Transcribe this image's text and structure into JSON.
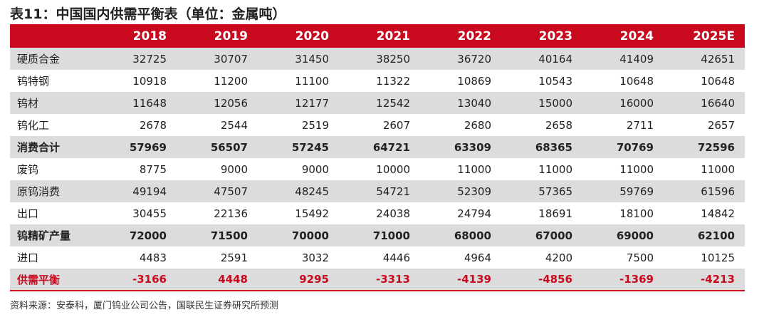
{
  "title": "表11：中国国内供需平衡表（单位：金属吨）",
  "columns": [
    "2018",
    "2019",
    "2020",
    "2021",
    "2022",
    "2023",
    "2024",
    "2025E"
  ],
  "rows": [
    {
      "label": "硬质合金",
      "values": [
        "32725",
        "30707",
        "31450",
        "38250",
        "36720",
        "40164",
        "41409",
        "42651"
      ]
    },
    {
      "label": "钨特钢",
      "values": [
        "10918",
        "11200",
        "11100",
        "11322",
        "10869",
        "10543",
        "10648",
        "10648"
      ]
    },
    {
      "label": "钨材",
      "values": [
        "11648",
        "12056",
        "12177",
        "12542",
        "13040",
        "15000",
        "16000",
        "16640"
      ]
    },
    {
      "label": "钨化工",
      "values": [
        "2678",
        "2544",
        "2519",
        "2607",
        "2680",
        "2658",
        "2711",
        "2657"
      ]
    },
    {
      "label": "消费合计",
      "values": [
        "57969",
        "56507",
        "57245",
        "64721",
        "63309",
        "68365",
        "70769",
        "72596"
      ]
    },
    {
      "label": "废钨",
      "values": [
        "8775",
        "9000",
        "9000",
        "10000",
        "11000",
        "11000",
        "11000",
        "11000"
      ]
    },
    {
      "label": "原钨消费",
      "values": [
        "49194",
        "47507",
        "48245",
        "54721",
        "52309",
        "57365",
        "59769",
        "61596"
      ]
    },
    {
      "label": "出口",
      "values": [
        "30455",
        "22136",
        "15492",
        "24038",
        "24794",
        "18691",
        "18100",
        "14842"
      ]
    },
    {
      "label": "钨精矿产量",
      "values": [
        "72000",
        "71500",
        "70000",
        "71000",
        "68000",
        "67000",
        "69000",
        "62100"
      ]
    },
    {
      "label": "进口",
      "values": [
        "4483",
        "2591",
        "3032",
        "4446",
        "4964",
        "4200",
        "7500",
        "10125"
      ]
    },
    {
      "label": "供需平衡",
      "values": [
        "-3166",
        "4448",
        "9295",
        "-3313",
        "-4139",
        "-4856",
        "-1369",
        "-4213"
      ]
    }
  ],
  "source": "资料来源：安泰科，厦门钨业公司公告，国联民生证券研究所预测",
  "colors": {
    "header_bg": "#c8091e",
    "shade_bg": "#dcdcdc",
    "balance_text": "#c8091e"
  }
}
